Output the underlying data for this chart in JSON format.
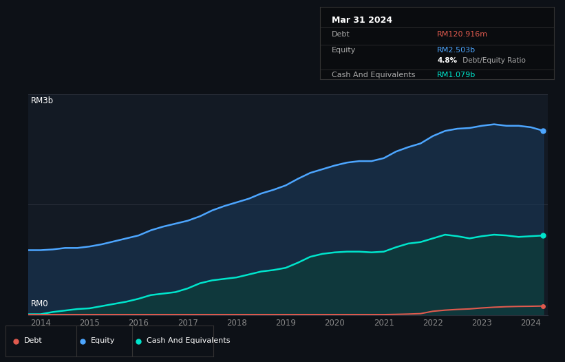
{
  "bg_color": "#0d1117",
  "plot_bg_color": "#131a24",
  "title": "Mar 31 2024",
  "ylabel_top": "RM3b",
  "ylabel_bottom": "RM0",
  "years": [
    2013.75,
    2014.0,
    2014.25,
    2014.5,
    2014.75,
    2015.0,
    2015.25,
    2015.5,
    2015.75,
    2016.0,
    2016.25,
    2016.5,
    2016.75,
    2017.0,
    2017.25,
    2017.5,
    2017.75,
    2018.0,
    2018.25,
    2018.5,
    2018.75,
    2019.0,
    2019.25,
    2019.5,
    2019.75,
    2020.0,
    2020.25,
    2020.5,
    2020.75,
    2021.0,
    2021.25,
    2021.5,
    2021.75,
    2022.0,
    2022.25,
    2022.5,
    2022.75,
    2023.0,
    2023.25,
    2023.5,
    2023.75,
    2024.0,
    2024.25
  ],
  "equity": [
    0.88,
    0.88,
    0.89,
    0.91,
    0.91,
    0.93,
    0.96,
    1.0,
    1.04,
    1.08,
    1.15,
    1.2,
    1.24,
    1.28,
    1.34,
    1.42,
    1.48,
    1.53,
    1.58,
    1.65,
    1.7,
    1.76,
    1.85,
    1.93,
    1.98,
    2.03,
    2.07,
    2.09,
    2.09,
    2.13,
    2.22,
    2.28,
    2.33,
    2.43,
    2.5,
    2.53,
    2.54,
    2.57,
    2.59,
    2.57,
    2.57,
    2.55,
    2.503
  ],
  "cash": [
    0.01,
    0.01,
    0.04,
    0.06,
    0.08,
    0.09,
    0.12,
    0.15,
    0.18,
    0.22,
    0.27,
    0.29,
    0.31,
    0.36,
    0.43,
    0.47,
    0.49,
    0.51,
    0.55,
    0.59,
    0.61,
    0.64,
    0.71,
    0.79,
    0.83,
    0.85,
    0.86,
    0.86,
    0.85,
    0.86,
    0.92,
    0.97,
    0.99,
    1.04,
    1.09,
    1.07,
    1.04,
    1.07,
    1.09,
    1.08,
    1.06,
    1.07,
    1.079
  ],
  "debt": [
    0.005,
    0.005,
    0.005,
    0.005,
    0.005,
    0.005,
    0.005,
    0.005,
    0.005,
    0.005,
    0.005,
    0.005,
    0.005,
    0.005,
    0.005,
    0.005,
    0.005,
    0.005,
    0.005,
    0.005,
    0.005,
    0.005,
    0.005,
    0.005,
    0.005,
    0.005,
    0.005,
    0.005,
    0.005,
    0.005,
    0.008,
    0.012,
    0.018,
    0.05,
    0.065,
    0.075,
    0.082,
    0.095,
    0.105,
    0.112,
    0.116,
    0.118,
    0.1209
  ],
  "xticks": [
    2014,
    2015,
    2016,
    2017,
    2018,
    2019,
    2020,
    2021,
    2022,
    2023,
    2024
  ],
  "ylim": [
    0,
    3.0
  ],
  "equity_color": "#4da6ff",
  "cash_color": "#00e5cc",
  "debt_color": "#e05a4e",
  "equity_fill": "#1a3a5c",
  "cash_fill": "#0d3d3a",
  "grid_color": "#2a2f3a",
  "tick_color": "#888888",
  "legend_border_color": "#333333",
  "info_title": "Mar 31 2024",
  "info_debt_label": "Debt",
  "info_debt_value": "RM120.916m",
  "info_debt_color": "#e05a4e",
  "info_equity_label": "Equity",
  "info_equity_value": "RM2.503b",
  "info_equity_color": "#4da6ff",
  "info_ratio": "4.8%",
  "info_ratio_label": " Debt/Equity Ratio",
  "info_cash_label": "Cash And Equivalents",
  "info_cash_value": "RM1.079b",
  "info_cash_color": "#00e5cc",
  "legend_items": [
    {
      "label": "Debt",
      "color": "#e05a4e"
    },
    {
      "label": "Equity",
      "color": "#4da6ff"
    },
    {
      "label": "Cash And Equivalents",
      "color": "#00e5cc"
    }
  ]
}
